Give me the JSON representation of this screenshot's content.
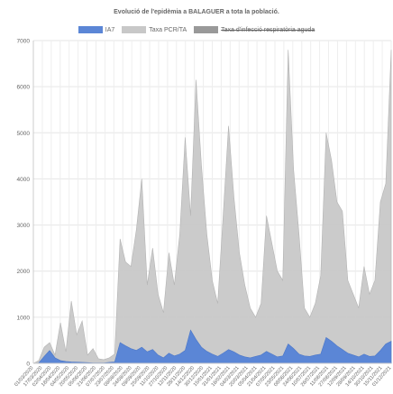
{
  "chart_data": {
    "type": "area",
    "title": "Evolució de l'epidèmia a BALAGUER a tota la població.",
    "xlabel": "",
    "ylabel": "",
    "ylim": [
      0,
      7000
    ],
    "yticks": [
      "0",
      "1000",
      "2000",
      "3000",
      "4000",
      "5000",
      "6000",
      "7000"
    ],
    "grid": true,
    "legend_position": "top",
    "xtick_labels": [
      "01/03/2020",
      "17/03/2020",
      "02/04/2020",
      "18/04/2020",
      "04/05/2020",
      "20/05/2020",
      "05/06/2020",
      "21/06/2020",
      "07/07/2020",
      "23/07/2020",
      "08/08/2020",
      "24/08/2020",
      "09/09/2020",
      "25/09/2020",
      "11/10/2020",
      "27/10/2020",
      "12/11/2020",
      "28/11/2020",
      "14/12/2020",
      "30/12/2020",
      "15/01/2021",
      "31/01/2021",
      "16/02/2021",
      "04/03/2021",
      "20/03/2021",
      "05/04/2021",
      "21/04/2021",
      "07/05/2021",
      "23/05/2021",
      "08/06/2021",
      "24/06/2021",
      "10/07/2021",
      "26/07/2021",
      "11/08/2021",
      "27/08/2021",
      "12/09/2021",
      "28/09/2021",
      "14/10/2021",
      "30/10/2021",
      "15/11/2021",
      "01/12/2021"
    ],
    "series": [
      {
        "name": "IA7",
        "color": "#5b86d6",
        "hidden": false,
        "values": [
          0,
          10,
          150,
          280,
          120,
          60,
          40,
          30,
          25,
          20,
          15,
          10,
          10,
          8,
          20,
          30,
          450,
          380,
          320,
          280,
          350,
          250,
          300,
          180,
          120,
          220,
          160,
          200,
          280,
          720,
          520,
          350,
          260,
          200,
          150,
          220,
          300,
          250,
          180,
          140,
          120,
          150,
          180,
          260,
          200,
          140,
          160,
          420,
          320,
          200,
          160,
          150,
          180,
          200,
          560,
          480,
          380,
          300,
          220,
          180,
          140,
          200,
          150,
          160,
          280,
          420,
          480
        ]
      },
      {
        "name": "Taxa PCR/TA",
        "color": "#c8c8c8",
        "hidden": false,
        "values": [
          0,
          60,
          350,
          450,
          180,
          880,
          250,
          1350,
          620,
          920,
          180,
          320,
          100,
          80,
          120,
          200,
          2700,
          2200,
          2100,
          2900,
          4000,
          1700,
          2500,
          1500,
          1100,
          2400,
          1700,
          2800,
          4900,
          3200,
          6150,
          4300,
          2800,
          1800,
          1300,
          3200,
          5150,
          3600,
          2400,
          1700,
          1200,
          1000,
          1300,
          3200,
          2600,
          2000,
          1800,
          6800,
          4200,
          2800,
          1200,
          1000,
          1300,
          1900,
          5000,
          4400,
          3500,
          3300,
          1800,
          1500,
          1200,
          2100,
          1500,
          1800,
          3500,
          3900,
          6800
        ]
      },
      {
        "name": "Taxa d'infecció respiratòria aguda",
        "color": "#999999",
        "hidden": true,
        "values": []
      }
    ]
  }
}
